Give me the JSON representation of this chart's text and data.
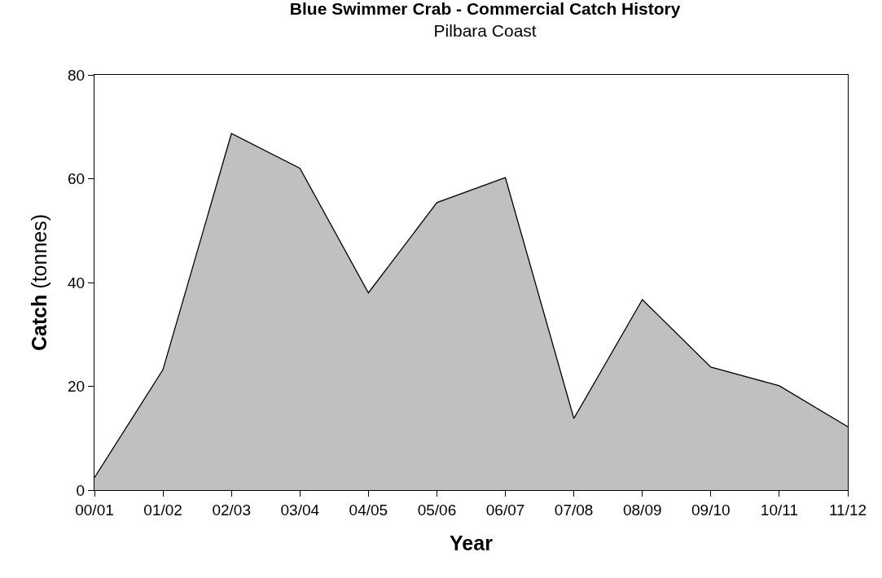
{
  "chart_data": {
    "type": "area",
    "title": "Blue Swimmer Crab - Commercial Catch History",
    "subtitle": "Pilbara Coast",
    "xlabel": "Year",
    "ylabel": "Catch (tonnes)",
    "categories": [
      "00/01",
      "01/02",
      "02/03",
      "03/04",
      "04/05",
      "05/06",
      "06/07",
      "07/08",
      "08/09",
      "09/10",
      "10/11",
      "11/12"
    ],
    "series": [
      {
        "color": "#c0c0c0",
        "values": [
          2.4,
          23.2,
          68.7,
          62.0,
          38.0,
          55.4,
          60.2,
          13.8,
          36.7,
          23.7,
          20.1,
          12.2
        ]
      }
    ],
    "ylim": [
      0,
      80
    ],
    "yticks": [
      0,
      20,
      40,
      60,
      80
    ],
    "grid": false
  }
}
